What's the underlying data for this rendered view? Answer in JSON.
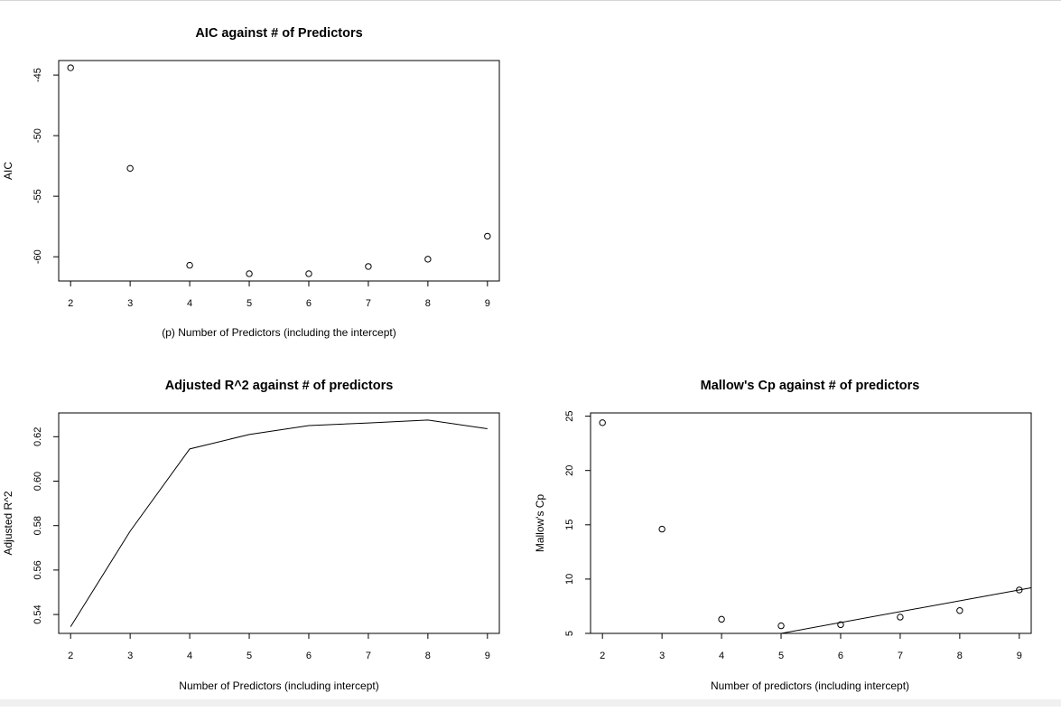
{
  "chart_data": [
    {
      "id": "aic",
      "type": "scatter",
      "title": "AIC against # of Predictors",
      "xlabel": "(p) Number of Predictors (including the intercept)",
      "ylabel": "AIC",
      "x": [
        2,
        3,
        4,
        5,
        6,
        7,
        8,
        9
      ],
      "y": [
        -44.4,
        -52.7,
        -60.7,
        -61.4,
        -61.4,
        -60.8,
        -60.2,
        -58.3
      ],
      "xlim": [
        1.8,
        9.2
      ],
      "ylim": [
        -62.0,
        -43.8
      ],
      "xticks": [
        "2",
        "3",
        "4",
        "5",
        "6",
        "7",
        "8",
        "9"
      ],
      "yticks": [
        "-45",
        "-50",
        "-55",
        "-60"
      ],
      "grid": false
    },
    {
      "id": "adjr2",
      "type": "line",
      "title": "Adjusted R^2 against # of predictors",
      "xlabel": "Number of Predictors (including intercept)",
      "ylabel": "Adjusted R^2",
      "x": [
        2,
        3,
        4,
        5,
        6,
        7,
        8,
        9
      ],
      "y": [
        0.5345,
        0.5775,
        0.6145,
        0.621,
        0.625,
        0.6262,
        0.6275,
        0.6236
      ],
      "xlim": [
        1.8,
        9.2
      ],
      "ylim": [
        0.5315,
        0.6307
      ],
      "xticks": [
        "2",
        "3",
        "4",
        "5",
        "6",
        "7",
        "8",
        "9"
      ],
      "yticks": [
        "0.54",
        "0.56",
        "0.58",
        "0.60",
        "0.62"
      ],
      "grid": false
    },
    {
      "id": "cp",
      "type": "scatter",
      "title": "Mallow's Cp against # of predictors",
      "xlabel": "Number of predictors (including intercept)",
      "ylabel": "Mallow's Cp",
      "x": [
        2,
        3,
        4,
        5,
        6,
        7,
        8,
        9
      ],
      "y": [
        24.4,
        14.6,
        6.3,
        5.7,
        5.8,
        6.5,
        7.1,
        9.0
      ],
      "reference_line": {
        "intercept": 0,
        "slope": 1
      },
      "xlim": [
        1.8,
        9.2
      ],
      "ylim": [
        5.0,
        25.3
      ],
      "xticks": [
        "2",
        "3",
        "4",
        "5",
        "6",
        "7",
        "8",
        "9"
      ],
      "yticks": [
        "5",
        "10",
        "15",
        "20",
        "25"
      ],
      "grid": false
    }
  ]
}
